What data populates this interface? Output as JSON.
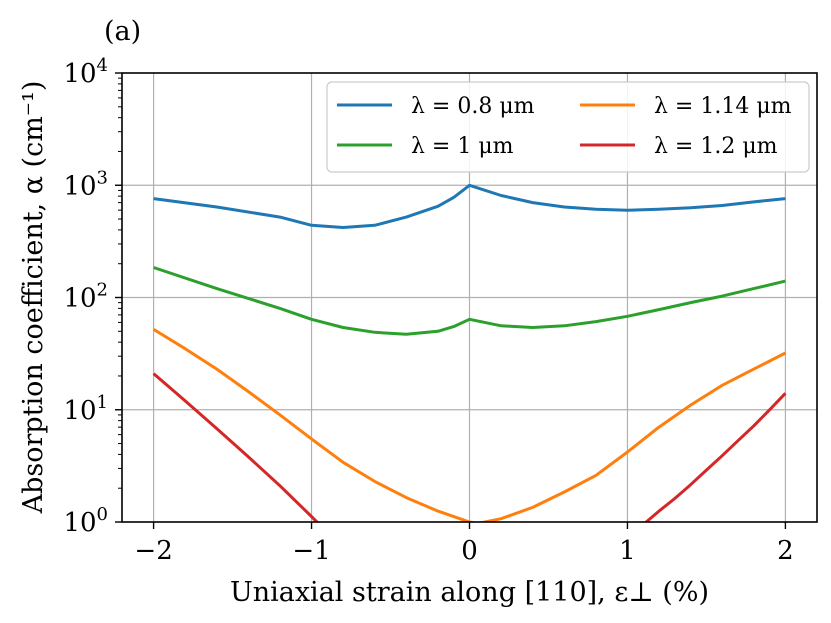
{
  "panel_label": "(a)",
  "chart_data": {
    "type": "line",
    "title": "",
    "xlabel": "Uniaxial strain along [110], ε⊥ (%)",
    "ylabel": "Absorption coefficient, α (cm⁻¹)",
    "xlim": [
      -2.2,
      2.2
    ],
    "ylim": [
      1,
      10000
    ],
    "yscale": "log",
    "grid": true,
    "legend_position": "top-right",
    "legend_columns": 2,
    "x_ticks": [
      -2,
      -1,
      0,
      1,
      2
    ],
    "x_tick_labels": [
      "−2",
      "−1",
      "0",
      "1",
      "2"
    ],
    "y_ticks": [
      1,
      10,
      100,
      1000,
      10000
    ],
    "y_tick_labels": [
      {
        "base": "10",
        "exp": "0"
      },
      {
        "base": "10",
        "exp": "1"
      },
      {
        "base": "10",
        "exp": "2"
      },
      {
        "base": "10",
        "exp": "3"
      },
      {
        "base": "10",
        "exp": "4"
      }
    ],
    "series": [
      {
        "name": "λ = 0.8 μm",
        "color": "#1f77b4",
        "x": [
          -2,
          -1.6,
          -1.2,
          -1,
          -0.8,
          -0.6,
          -0.4,
          -0.2,
          -0.1,
          0,
          0.2,
          0.4,
          0.6,
          0.8,
          1,
          1.2,
          1.4,
          1.6,
          1.8,
          2
        ],
        "y": [
          760,
          640,
          520,
          440,
          420,
          440,
          520,
          650,
          780,
          1000,
          810,
          700,
          640,
          610,
          600,
          610,
          630,
          660,
          710,
          760
        ]
      },
      {
        "name": "λ = 1 μm",
        "color": "#2ca02c",
        "x": [
          -2,
          -1.6,
          -1.2,
          -1,
          -0.8,
          -0.6,
          -0.4,
          -0.2,
          -0.1,
          0,
          0.2,
          0.4,
          0.6,
          0.8,
          1,
          1.2,
          1.4,
          1.6,
          1.8,
          2
        ],
        "y": [
          185,
          120,
          80,
          64,
          54,
          49,
          47,
          50,
          55,
          64,
          56,
          54,
          56,
          61,
          68,
          78,
          90,
          103,
          120,
          140
        ]
      },
      {
        "name": "λ = 1.14 μm",
        "color": "#ff7f0e",
        "x": [
          -2,
          -1.8,
          -1.6,
          -1.4,
          -1.2,
          -1,
          -0.8,
          -0.6,
          -0.4,
          -0.2,
          0,
          0.05,
          0.2,
          0.4,
          0.6,
          0.8,
          1,
          1.2,
          1.4,
          1.6,
          1.8,
          2
        ],
        "y": [
          52,
          35,
          23,
          14.5,
          9,
          5.5,
          3.4,
          2.3,
          1.65,
          1.25,
          1.0,
          0.97,
          1.07,
          1.35,
          1.85,
          2.6,
          4.2,
          7,
          11,
          16.5,
          23,
          32
        ]
      },
      {
        "name": "λ = 1.2 μm",
        "color": "#d62728",
        "x": [
          -2,
          -1.8,
          -1.6,
          -1.4,
          -1.2,
          -1,
          -0.95,
          1.1,
          1.2,
          1.3,
          1.4,
          1.5,
          1.6,
          1.7,
          1.8,
          1.9,
          2
        ],
        "y": [
          21,
          12,
          6.8,
          3.8,
          2.1,
          1.12,
          0.95,
          0.95,
          1.25,
          1.62,
          2.15,
          2.9,
          3.9,
          5.3,
          7.2,
          10,
          14
        ]
      }
    ]
  }
}
